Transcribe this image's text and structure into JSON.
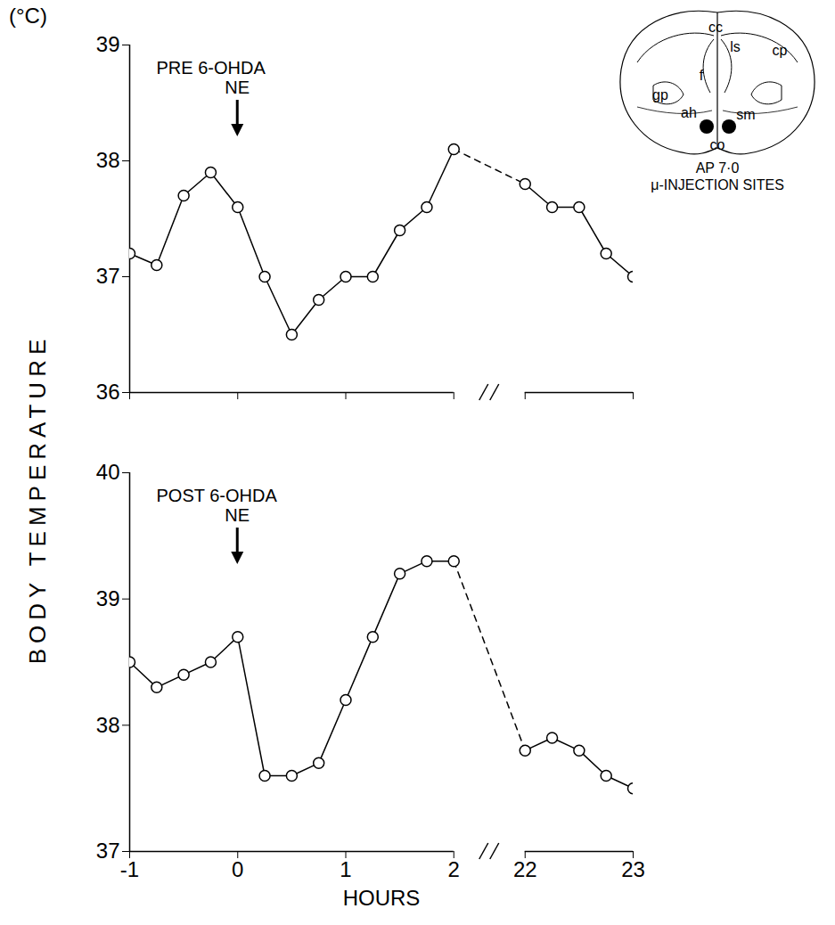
{
  "figure": {
    "y_label": "BODY TEMPERATURE",
    "unit": "(°C)",
    "inset": {
      "labels": [
        "cc",
        "ls",
        "cp",
        "gp",
        "f",
        "ah",
        "sm",
        "co"
      ],
      "caption": [
        "AP 7·0",
        "μ-INJECTION SITES"
      ]
    }
  },
  "chart_data": [
    {
      "type": "line",
      "title": "PRE 6-OHDA",
      "x": [
        -1,
        -0.75,
        -0.5,
        -0.25,
        0,
        0.25,
        0.5,
        0.75,
        1,
        1.25,
        1.5,
        1.75,
        2,
        22,
        22.25,
        22.5,
        22.75,
        23
      ],
      "series": [
        {
          "color": "#000000",
          "marker": "circle",
          "line_style": "solid",
          "values": [
            37.2,
            37.1,
            37.7,
            37.9,
            37.6,
            37.0,
            36.5,
            36.8,
            37.0,
            37.0,
            37.4,
            37.6,
            38.1,
            37.8,
            37.6,
            37.6,
            37.2,
            37.0
          ]
        }
      ],
      "xlim": [
        -1,
        23
      ],
      "xticks": [
        -1,
        0,
        1,
        2,
        22,
        23
      ],
      "ylim": [
        36,
        39
      ],
      "yticks": [
        36,
        37,
        38,
        39
      ],
      "tick_labels": "y",
      "annotations": [
        {
          "text": "NE",
          "x": 0
        }
      ]
    },
    {
      "type": "line",
      "title": "POST 6-OHDA",
      "x_label": "HOURS",
      "x": [
        -1,
        -0.75,
        -0.5,
        -0.25,
        0,
        0.25,
        0.5,
        0.75,
        1,
        1.25,
        1.5,
        1.75,
        2,
        22,
        22.25,
        22.5,
        22.75,
        23
      ],
      "series": [
        {
          "color": "#000000",
          "marker": "circle",
          "line_style": "solid",
          "values": [
            38.5,
            38.3,
            38.4,
            38.5,
            38.7,
            37.6,
            37.6,
            37.7,
            38.2,
            38.7,
            39.2,
            39.3,
            39.3,
            37.8,
            37.9,
            37.8,
            37.6,
            37.5
          ]
        }
      ],
      "xlim": [
        -1,
        23
      ],
      "xticks": [
        -1,
        0,
        1,
        2,
        22,
        23
      ],
      "ylim": [
        37,
        40
      ],
      "yticks": [
        37,
        38,
        39,
        40
      ],
      "annotations": [
        {
          "text": "NE",
          "x": 0
        }
      ]
    }
  ]
}
